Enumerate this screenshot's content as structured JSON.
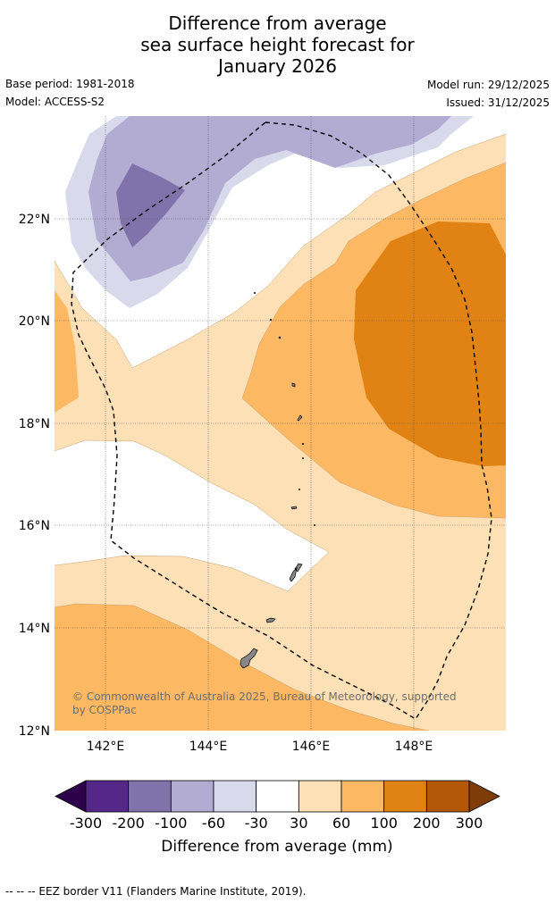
{
  "title": {
    "line1": "Difference from average",
    "line2": "sea surface height forecast for",
    "line3": "January 2026"
  },
  "meta": {
    "base_period": "Base period: 1981-2018",
    "model": "Model: ACCESS-S2",
    "model_run": "Model run: 29/12/2025",
    "issued": "Issued: 31/12/2025"
  },
  "map": {
    "lat_labels": [
      "22°N",
      "20°N",
      "18°N",
      "16°N",
      "14°N",
      "12°N"
    ],
    "lon_labels": [
      "142°E",
      "144°E",
      "146°E",
      "148°E"
    ],
    "copyright_line1": "© Commonwealth of Australia 2025, Bureau of Meteorology, supported",
    "copyright_line2": "by COSPPac"
  },
  "colorbar": {
    "ticks": [
      "-300",
      "-200",
      "-100",
      "-60",
      "-30",
      "30",
      "60",
      "100",
      "200",
      "300"
    ],
    "label": "Difference from average (mm)",
    "colors": [
      "#2d004b",
      "#542788",
      "#8073ac",
      "#b2abd2",
      "#d8daeb",
      "#ffffff",
      "#fee0b6",
      "#fdb863",
      "#e08214",
      "#b35806",
      "#7f3b08"
    ]
  },
  "footer": {
    "legend": "--  --  -- EEZ border V11 (Flanders Marine Institute, 2019)."
  }
}
